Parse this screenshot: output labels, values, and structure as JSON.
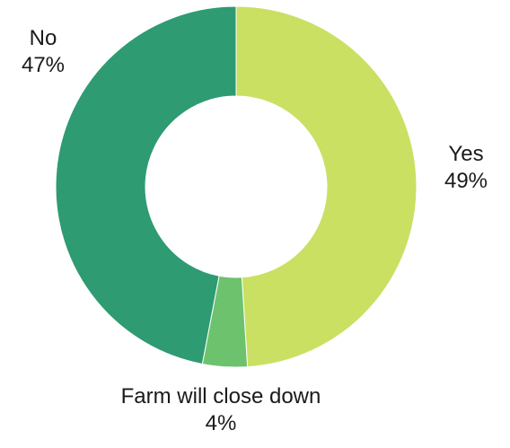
{
  "chart_data": {
    "type": "pie",
    "donut": true,
    "slices": [
      {
        "label": "Yes",
        "value": 49,
        "value_label": "49%",
        "color": "#c9e063"
      },
      {
        "label": "Farm will close down",
        "value": 4,
        "value_label": "4%",
        "color": "#6cc26d"
      },
      {
        "label": "No",
        "value": 47,
        "value_label": "47%",
        "color": "#2e9b72"
      }
    ],
    "start": "top",
    "direction": "clockwise",
    "legend": "none"
  }
}
